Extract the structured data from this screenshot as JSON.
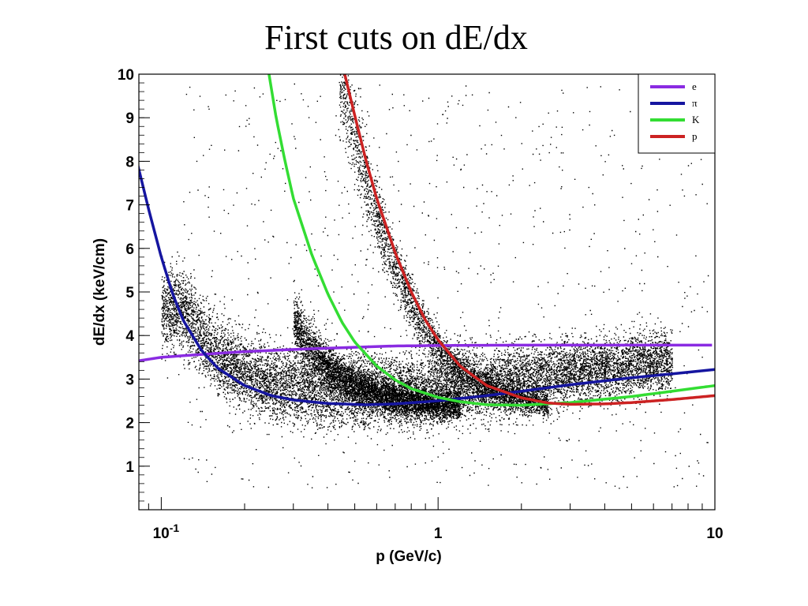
{
  "slide": {
    "title": "First cuts on dE/dx"
  },
  "chart_data": {
    "type": "scatter",
    "xlabel": "p (GeV/c)",
    "ylabel": "dE/dx (keV/cm)",
    "x_scale": "log",
    "xlim": [
      0.083,
      10
    ],
    "ylim": [
      0,
      10
    ],
    "x_ticks": [
      {
        "value": 0.1,
        "label": "10",
        "exponent": "-1"
      },
      {
        "value": 1,
        "label": "1",
        "exponent": ""
      },
      {
        "value": 10,
        "label": "10",
        "exponent": ""
      }
    ],
    "y_ticks": [
      {
        "value": 1,
        "label": "1"
      },
      {
        "value": 2,
        "label": "2"
      },
      {
        "value": 3,
        "label": "3"
      },
      {
        "value": 4,
        "label": "4"
      },
      {
        "value": 5,
        "label": "5"
      },
      {
        "value": 6,
        "label": "6"
      },
      {
        "value": 7,
        "label": "7"
      },
      {
        "value": 8,
        "label": "8"
      },
      {
        "value": 9,
        "label": "9"
      },
      {
        "value": 10,
        "label": "10"
      }
    ],
    "legend": {
      "position": "top-right",
      "entries": [
        {
          "label": "e",
          "color": "#8a2be2"
        },
        {
          "label": "π",
          "color": "#1515a0"
        },
        {
          "label": "K",
          "color": "#33dd33"
        },
        {
          "label": "p",
          "color": "#cc2222"
        }
      ]
    },
    "series": [
      {
        "name": "e",
        "color": "#8a2be2",
        "x": [
          0.083,
          0.1,
          0.15,
          0.2,
          0.3,
          0.5,
          0.7,
          1,
          2,
          5,
          10
        ],
        "y": [
          3.42,
          3.5,
          3.58,
          3.63,
          3.68,
          3.73,
          3.76,
          3.77,
          3.78,
          3.78,
          3.78
        ]
      },
      {
        "name": "π",
        "color": "#1515a0",
        "x": [
          0.082,
          0.09,
          0.1,
          0.11,
          0.12,
          0.14,
          0.16,
          0.2,
          0.25,
          0.3,
          0.4,
          0.55,
          0.7,
          1,
          1.5,
          2,
          3,
          5,
          7,
          10
        ],
        "y": [
          7.95,
          6.9,
          5.8,
          4.95,
          4.35,
          3.65,
          3.25,
          2.85,
          2.62,
          2.52,
          2.44,
          2.41,
          2.43,
          2.5,
          2.62,
          2.72,
          2.87,
          3.03,
          3.12,
          3.22
        ]
      },
      {
        "name": "K",
        "color": "#33dd33",
        "x": [
          0.245,
          0.26,
          0.28,
          0.3,
          0.35,
          0.4,
          0.45,
          0.5,
          0.6,
          0.7,
          0.8,
          1,
          1.2,
          1.5,
          2,
          3,
          5,
          7,
          10
        ],
        "y": [
          10.0,
          9.0,
          8.0,
          7.15,
          5.85,
          4.95,
          4.3,
          3.85,
          3.3,
          2.98,
          2.78,
          2.58,
          2.48,
          2.41,
          2.4,
          2.46,
          2.6,
          2.72,
          2.85
        ]
      },
      {
        "name": "p",
        "color": "#cc2222",
        "x": [
          0.46,
          0.5,
          0.55,
          0.6,
          0.7,
          0.8,
          0.9,
          1,
          1.2,
          1.5,
          2,
          2.5,
          3,
          4,
          5,
          7,
          10
        ],
        "y": [
          10.0,
          9.05,
          8.0,
          7.15,
          5.9,
          5.0,
          4.35,
          3.9,
          3.3,
          2.85,
          2.57,
          2.45,
          2.42,
          2.43,
          2.46,
          2.53,
          2.62
        ]
      }
    ]
  }
}
